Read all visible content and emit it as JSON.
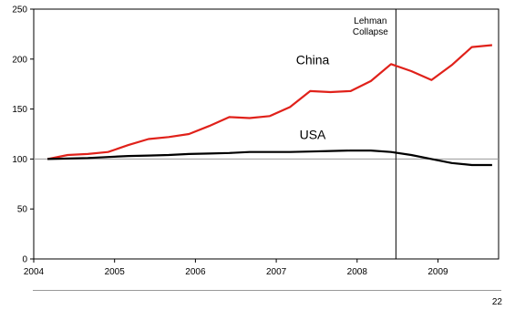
{
  "chart_data": {
    "type": "line",
    "title": "",
    "xlabel": "",
    "ylabel": "",
    "xlim": [
      2004.0,
      2009.75
    ],
    "ylim": [
      0,
      250
    ],
    "x_ticks": [
      "2004",
      "2005",
      "2006",
      "2007",
      "2008",
      "2009"
    ],
    "y_ticks": [
      "0",
      "50",
      "100",
      "150",
      "200",
      "250"
    ],
    "grid": false,
    "reference_line": {
      "y": 100,
      "color": "#999999"
    },
    "series": [
      {
        "name": "China",
        "color": "#e0211a",
        "x": [
          2004.17,
          2004.42,
          2004.67,
          2004.92,
          2005.17,
          2005.42,
          2005.67,
          2005.92,
          2006.17,
          2006.42,
          2006.67,
          2006.92,
          2007.17,
          2007.42,
          2007.67,
          2007.92,
          2008.17,
          2008.42,
          2008.67,
          2008.92,
          2009.17,
          2009.42,
          2009.67
        ],
        "y": [
          100,
          104,
          105,
          107,
          114,
          120,
          122,
          125,
          133,
          142,
          141,
          143,
          152,
          168,
          167,
          168,
          178,
          195,
          188,
          179,
          194,
          212,
          214
        ]
      },
      {
        "name": "USA",
        "color": "#000000",
        "x": [
          2004.17,
          2004.42,
          2004.67,
          2004.92,
          2005.17,
          2005.42,
          2005.67,
          2005.92,
          2006.17,
          2006.42,
          2006.67,
          2006.92,
          2007.17,
          2007.42,
          2007.67,
          2007.92,
          2008.17,
          2008.42,
          2008.67,
          2008.92,
          2009.17,
          2009.42,
          2009.67
        ],
        "y": [
          100,
          100.5,
          101,
          102,
          103,
          103.5,
          104,
          105,
          105.5,
          106,
          107,
          107,
          107,
          107.5,
          108,
          108.5,
          108.5,
          107,
          104,
          100,
          96,
          94,
          94
        ]
      }
    ],
    "annotations": [
      {
        "x": 2008.48,
        "lines": [
          "Lehman",
          "Collapse"
        ]
      }
    ]
  },
  "page_number": "22"
}
